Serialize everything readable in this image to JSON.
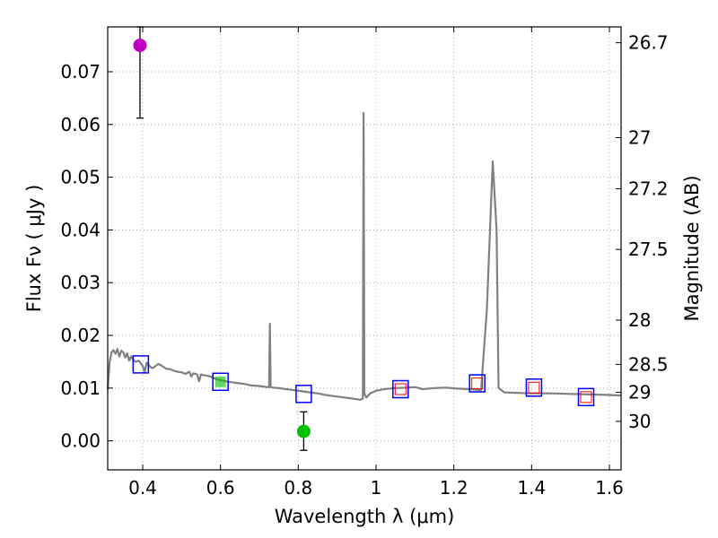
{
  "chart_data": {
    "type": "scatter",
    "xlabel": "Wavelength  λ (μm)",
    "ylabel_left": "Flux  Fν  ( μJy )",
    "ylabel_right": "Magnitude (AB)",
    "xlim": [
      0.31,
      1.63
    ],
    "ylim": [
      -0.0055,
      0.0785
    ],
    "grid": true,
    "x_ticks": [
      {
        "value": 0.4,
        "label": "0.4"
      },
      {
        "value": 0.6,
        "label": "0.6"
      },
      {
        "value": 0.8,
        "label": "0.8"
      },
      {
        "value": 1.0,
        "label": "1"
      },
      {
        "value": 1.2,
        "label": "1.2"
      },
      {
        "value": 1.4,
        "label": "1.4"
      },
      {
        "value": 1.6,
        "label": "1.6"
      }
    ],
    "y_ticks": [
      {
        "value": 0.0,
        "label": "0.00"
      },
      {
        "value": 0.01,
        "label": "0.01"
      },
      {
        "value": 0.02,
        "label": "0.02"
      },
      {
        "value": 0.03,
        "label": "0.03"
      },
      {
        "value": 0.04,
        "label": "0.04"
      },
      {
        "value": 0.05,
        "label": "0.05"
      },
      {
        "value": 0.06,
        "label": "0.06"
      },
      {
        "value": 0.07,
        "label": "0.07"
      }
    ],
    "right_ticks": [
      {
        "flux": 0.0755,
        "label": "26.7"
      },
      {
        "flux": 0.0575,
        "label": "27"
      },
      {
        "flux": 0.0478,
        "label": "27.2"
      },
      {
        "flux": 0.0363,
        "label": "27.5"
      },
      {
        "flux": 0.0229,
        "label": "28"
      },
      {
        "flux": 0.0145,
        "label": "28.5"
      },
      {
        "flux": 0.0092,
        "label": "29"
      },
      {
        "flux": 0.0037,
        "label": "30"
      }
    ],
    "sed_color": "#808080",
    "sed_curve": [
      [
        0.31,
        0.0098
      ],
      [
        0.315,
        0.015
      ],
      [
        0.32,
        0.0168
      ],
      [
        0.325,
        0.0172
      ],
      [
        0.33,
        0.0165
      ],
      [
        0.335,
        0.0174
      ],
      [
        0.34,
        0.016
      ],
      [
        0.345,
        0.0171
      ],
      [
        0.35,
        0.0168
      ],
      [
        0.355,
        0.0158
      ],
      [
        0.36,
        0.0166
      ],
      [
        0.365,
        0.0152
      ],
      [
        0.37,
        0.016
      ],
      [
        0.375,
        0.0155
      ],
      [
        0.38,
        0.015
      ],
      [
        0.39,
        0.0152
      ],
      [
        0.4,
        0.0142
      ],
      [
        0.405,
        0.013
      ],
      [
        0.41,
        0.0148
      ],
      [
        0.42,
        0.014
      ],
      [
        0.425,
        0.0138
      ],
      [
        0.43,
        0.014
      ],
      [
        0.44,
        0.0146
      ],
      [
        0.45,
        0.0142
      ],
      [
        0.46,
        0.0137
      ],
      [
        0.47,
        0.0136
      ],
      [
        0.48,
        0.0133
      ],
      [
        0.49,
        0.0131
      ],
      [
        0.5,
        0.013
      ],
      [
        0.51,
        0.0127
      ],
      [
        0.52,
        0.0131
      ],
      [
        0.525,
        0.0122
      ],
      [
        0.53,
        0.0128
      ],
      [
        0.54,
        0.0126
      ],
      [
        0.545,
        0.0113
      ],
      [
        0.55,
        0.0126
      ],
      [
        0.56,
        0.0124
      ],
      [
        0.57,
        0.0123
      ],
      [
        0.58,
        0.012
      ],
      [
        0.59,
        0.0117
      ],
      [
        0.6,
        0.0115
      ],
      [
        0.62,
        0.0112
      ],
      [
        0.64,
        0.011
      ],
      [
        0.66,
        0.0108
      ],
      [
        0.68,
        0.0105
      ],
      [
        0.7,
        0.0104
      ],
      [
        0.72,
        0.0102
      ],
      [
        0.725,
        0.0102
      ],
      [
        0.727,
        0.0222
      ],
      [
        0.729,
        0.0102
      ],
      [
        0.735,
        0.0101
      ],
      [
        0.75,
        0.01
      ],
      [
        0.77,
        0.0098
      ],
      [
        0.79,
        0.0096
      ],
      [
        0.81,
        0.0094
      ],
      [
        0.83,
        0.0092
      ],
      [
        0.85,
        0.009
      ],
      [
        0.87,
        0.0087
      ],
      [
        0.89,
        0.0085
      ],
      [
        0.91,
        0.0083
      ],
      [
        0.93,
        0.0081
      ],
      [
        0.95,
        0.0079
      ],
      [
        0.96,
        0.0078
      ],
      [
        0.966,
        0.008
      ],
      [
        0.968,
        0.0622
      ],
      [
        0.97,
        0.009
      ],
      [
        0.975,
        0.0082
      ],
      [
        0.985,
        0.009
      ],
      [
        1.0,
        0.0095
      ],
      [
        1.02,
        0.0098
      ],
      [
        1.05,
        0.01
      ],
      [
        1.08,
        0.0101
      ],
      [
        1.1,
        0.0102
      ],
      [
        1.12,
        0.0098
      ],
      [
        1.15,
        0.01
      ],
      [
        1.18,
        0.0101
      ],
      [
        1.21,
        0.0099
      ],
      [
        1.24,
        0.0098
      ],
      [
        1.27,
        0.0096
      ],
      [
        1.285,
        0.025
      ],
      [
        1.3,
        0.053
      ],
      [
        1.31,
        0.04
      ],
      [
        1.315,
        0.01
      ],
      [
        1.33,
        0.0092
      ],
      [
        1.36,
        0.0091
      ],
      [
        1.4,
        0.009
      ],
      [
        1.45,
        0.009
      ],
      [
        1.5,
        0.0089
      ],
      [
        1.55,
        0.0088
      ],
      [
        1.6,
        0.0087
      ],
      [
        1.63,
        0.0086
      ]
    ],
    "model_points": [
      {
        "x": 0.395,
        "y": 0.0145,
        "edge": "#0000ff"
      },
      {
        "x": 0.6,
        "y": 0.0112,
        "edge": "#0000ff",
        "fill": "#00c000"
      },
      {
        "x": 0.814,
        "y": 0.0089,
        "edge": "#0000ff"
      },
      {
        "x": 1.063,
        "y": 0.0098,
        "edge": "#0000ff",
        "inner": "#ff0000"
      },
      {
        "x": 1.26,
        "y": 0.0109,
        "edge": "#0000ff",
        "inner": "#ff0000"
      },
      {
        "x": 1.406,
        "y": 0.0101,
        "edge": "#0000ff",
        "inner": "#ff0000"
      },
      {
        "x": 1.54,
        "y": 0.0083,
        "edge": "#0000ff",
        "inner": "#ff0000"
      }
    ],
    "observed_points": [
      {
        "x": 0.393,
        "y": 0.075,
        "err_low": 0.0612,
        "err_high": 0.0785,
        "color": "#c000c0"
      },
      {
        "x": 0.814,
        "y": 0.0018,
        "err_low": -0.0018,
        "err_high": 0.0055,
        "color": "#00c000"
      }
    ]
  }
}
